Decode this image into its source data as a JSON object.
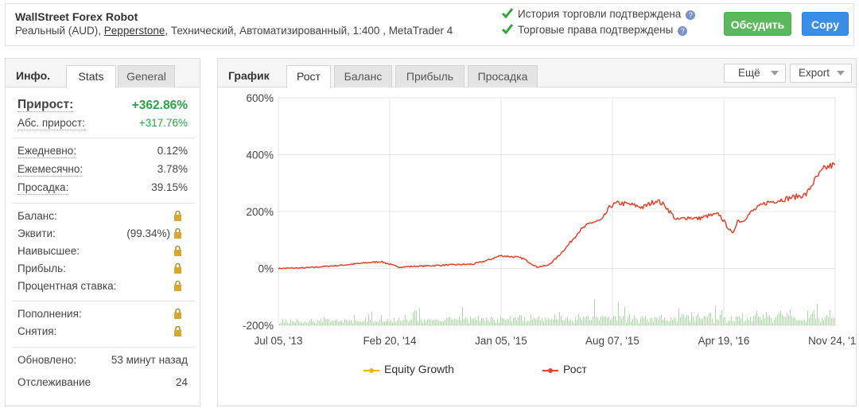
{
  "header": {
    "title": "WallStreet Forex Robot",
    "subtitle_pre": "Реальный (AUD), ",
    "broker": "Pepperstone",
    "subtitle_post": ", Технический, Автоматизированный, 1:400 , MetaTrader 4",
    "verify1": "История торговли подтверждена",
    "verify2": "Торговые права подтверждены",
    "help_icon": "?",
    "discuss_label": "Обсудить",
    "copy_label": "Copy"
  },
  "left": {
    "title": "Инфо.",
    "tabs": [
      "Stats",
      "General"
    ],
    "growth_label": "Прирост:",
    "growth_value": "+362.86%",
    "abs_label": "Абс. прирост:",
    "abs_value": "+317.76%",
    "daily_label": "Ежедневно:",
    "daily_value": "0.12%",
    "monthly_label": "Ежемесячно:",
    "monthly_value": "3.78%",
    "drawdown_label": "Просадка:",
    "drawdown_value": "39.15%",
    "balance_label": "Баланс:",
    "equity_label": "Эквити:",
    "equity_value": "(99.34%)",
    "highest_label": "Наивысшее:",
    "profit_label": "Прибыль:",
    "interest_label": "Процентная ставка:",
    "deposits_label": "Пополнения:",
    "withdrawals_label": "Снятия:",
    "updated_label": "Обновлено:",
    "updated_value": "53 минут назад",
    "tracking_label": "Отслеживание",
    "tracking_value": "24",
    "lock_icon": "lock-icon"
  },
  "right": {
    "title": "График",
    "tabs": [
      "Рост",
      "Баланс",
      "Прибыль",
      "Просадка"
    ],
    "more_label": "Ещё",
    "export_label": "Export"
  },
  "colors": {
    "growth_line": "#e8412a",
    "equity_line": "#f5b400",
    "volume_bars": "#a8dca0",
    "green_text": "#27a644",
    "discuss_btn": "#5cb85c",
    "copy_btn": "#3a8ee8"
  },
  "chart_data": {
    "type": "line",
    "ylim": [
      -200,
      600
    ],
    "y_ticks": [
      "600%",
      "400%",
      "200%",
      "0%",
      "-200%"
    ],
    "y_tick_values": [
      600,
      400,
      200,
      0,
      -200
    ],
    "x_ticks": [
      "Jul 05, '13",
      "Feb 20, '14",
      "Jan 05, '15",
      "Aug 07, '15",
      "Apr 19, '16",
      "Nov 24, '16"
    ],
    "grid": true,
    "legend_position": "bottom",
    "series": [
      {
        "name": "Equity Growth",
        "color": "#f5b400",
        "x": [],
        "y": []
      },
      {
        "name": "Рост",
        "color": "#e8412a",
        "x": [
          "2013-07-05",
          "2013-09-01",
          "2013-11-15",
          "2014-01-20",
          "2014-02-20",
          "2014-04-01",
          "2014-05-20",
          "2014-07-15",
          "2014-09-15",
          "2014-10-20",
          "2014-11-15",
          "2014-12-20",
          "2015-01-05",
          "2015-02-05",
          "2015-03-01",
          "2015-03-20",
          "2015-04-15",
          "2015-05-10",
          "2015-06-05",
          "2015-07-01",
          "2015-07-20",
          "2015-08-07",
          "2015-09-01",
          "2015-10-01",
          "2015-11-01",
          "2015-11-20",
          "2015-12-15",
          "2016-01-10",
          "2016-02-01",
          "2016-02-25",
          "2016-03-20",
          "2016-04-19",
          "2016-04-30",
          "2016-05-10",
          "2016-06-01",
          "2016-07-01",
          "2016-08-01",
          "2016-09-01",
          "2016-10-01",
          "2016-10-20",
          "2016-11-10",
          "2016-11-24",
          "2016-12-05"
        ],
        "y": [
          0,
          2,
          10,
          20,
          24,
          5,
          8,
          12,
          15,
          30,
          45,
          40,
          35,
          5,
          10,
          35,
          80,
          130,
          160,
          170,
          220,
          230,
          225,
          215,
          240,
          220,
          170,
          180,
          175,
          185,
          190,
          120,
          170,
          165,
          200,
          230,
          240,
          250,
          260,
          310,
          350,
          360,
          365
        ]
      }
    ]
  }
}
